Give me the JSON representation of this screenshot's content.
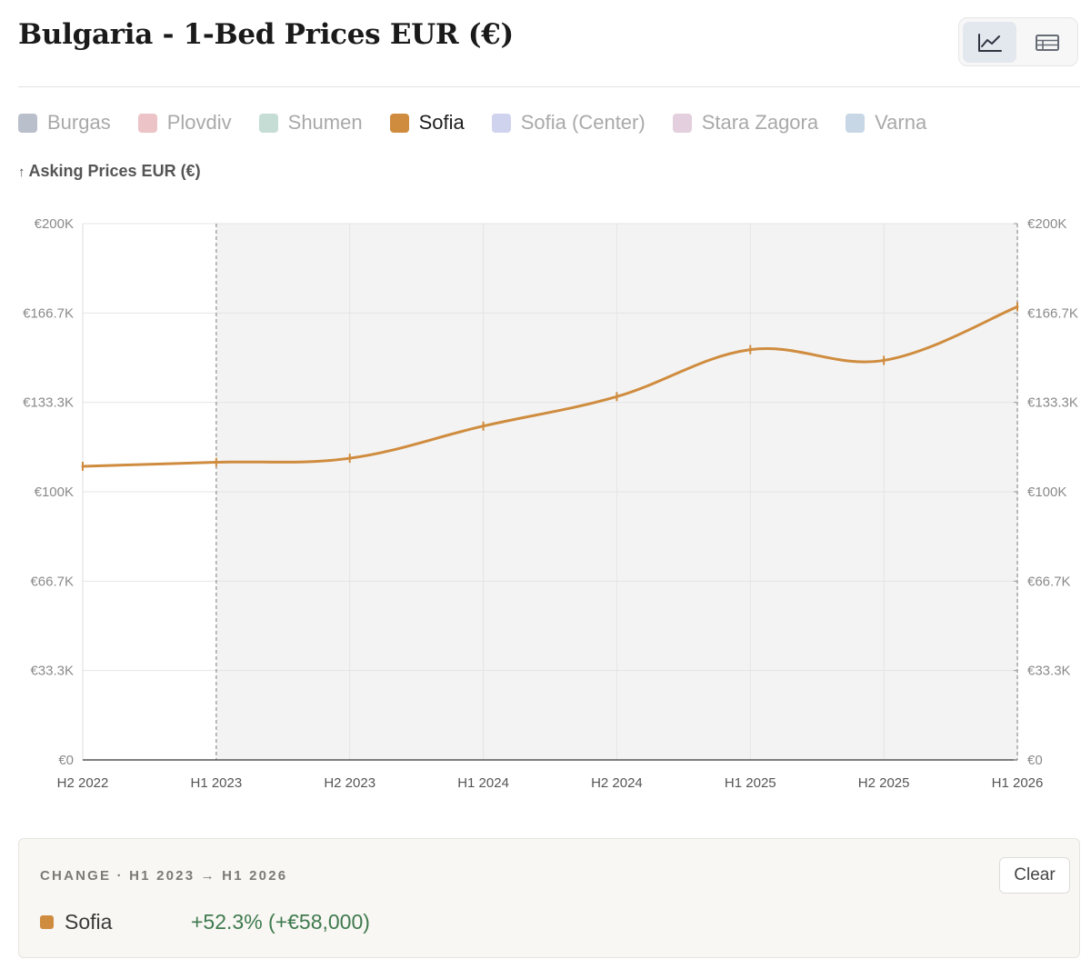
{
  "header": {
    "title": "Bulgaria - 1-Bed Prices EUR (€)"
  },
  "view_toggle": [
    {
      "name": "line-chart-view-button",
      "icon": "line-chart-icon",
      "active": true
    },
    {
      "name": "table-view-button",
      "icon": "table-icon",
      "active": false
    }
  ],
  "legend": [
    {
      "label": "Burgas",
      "color": "#b9bfcb",
      "active": false
    },
    {
      "label": "Plovdiv",
      "color": "#ecc3c6",
      "active": false
    },
    {
      "label": "Shumen",
      "color": "#c6ddd6",
      "active": false
    },
    {
      "label": "Sofia",
      "color": "#cf8c3f",
      "active": true
    },
    {
      "label": "Sofia (Center)",
      "color": "#cfd3ee",
      "active": false
    },
    {
      "label": "Stara Zagora",
      "color": "#e3cfdd",
      "active": false
    },
    {
      "label": "Varna",
      "color": "#c8d7e6",
      "active": false
    }
  ],
  "metric_label": {
    "arrow": "↑",
    "text": "Asking Prices EUR (€)"
  },
  "chart_data": {
    "type": "line",
    "ylabel": "Asking Prices EUR (€)",
    "categories": [
      "H2 2022",
      "H1 2023",
      "H2 2023",
      "H1 2024",
      "H2 2024",
      "H1 2025",
      "H2 2025",
      "H1 2026"
    ],
    "yticks": [
      "€0",
      "€33.3K",
      "€66.7K",
      "€100K",
      "€133.3K",
      "€166.7K",
      "€200K"
    ],
    "ylim": [
      0,
      200000
    ],
    "grid": true,
    "selected_range": [
      "H1 2023",
      "H1 2026"
    ],
    "series": [
      {
        "name": "Sofia",
        "color": "#cf8c3f",
        "values": [
          109500,
          111000,
          112500,
          124500,
          135500,
          153000,
          149000,
          169000
        ]
      }
    ]
  },
  "change_panel": {
    "title": "CHANGE · H1 2023 → H1 2026",
    "clear_label": "Clear",
    "rows": [
      {
        "name": "Sofia",
        "value": "+52.3% (+€58,000)"
      }
    ]
  }
}
